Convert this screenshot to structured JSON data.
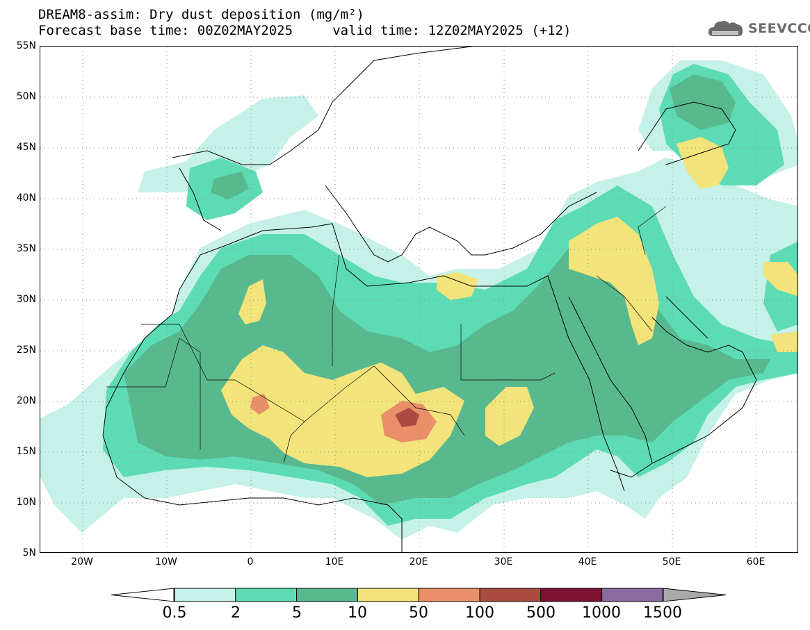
{
  "title": {
    "line1": "DREAM8-assim: Dry dust deposition (mg/m²)",
    "line2": "Forecast base time: 00Z02MAY2025     valid time: 12Z02MAY2025 (+12)"
  },
  "logo": {
    "text": "SEEVCCC",
    "icon": "cloud-logo-icon"
  },
  "map": {
    "lon_range": [
      -25,
      65
    ],
    "lat_range": [
      5,
      55
    ],
    "lat_labels": [
      "55N",
      "50N",
      "45N",
      "40N",
      "35N",
      "30N",
      "25N",
      "20N",
      "15N",
      "10N",
      "5N"
    ],
    "lon_labels": [
      "20W",
      "10W",
      "0",
      "10E",
      "20E",
      "30E",
      "40E",
      "50E",
      "60E"
    ],
    "gridlines": "dotted",
    "coastlines_color": "#000000"
  },
  "colorbar": {
    "levels": [
      "0.5",
      "2",
      "5",
      "10",
      "50",
      "100",
      "500",
      "1000",
      "1500"
    ],
    "colors": [
      "#c5f1e8",
      "#5ddbb5",
      "#58b98f",
      "#f2e47a",
      "#e98f69",
      "#a94b3f",
      "#7f1132",
      "#8b6aa0"
    ],
    "under_color": "#ffffff",
    "over_color": "#a9a9a9"
  }
}
